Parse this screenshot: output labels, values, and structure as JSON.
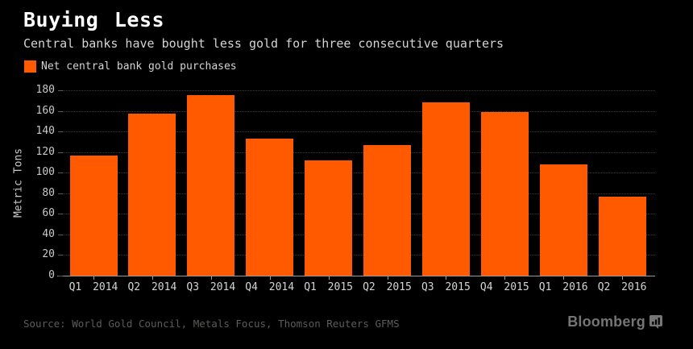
{
  "header": {
    "title": "Buying Less",
    "subtitle": "Central banks have bought less gold for three consecutive quarters"
  },
  "legend": {
    "label": "Net central bank gold purchases",
    "swatch_color": "#ff5a00"
  },
  "chart_data": {
    "type": "bar",
    "title": "Buying Less",
    "subtitle": "Central banks have bought less gold for three consecutive quarters",
    "series_name": "Net central bank gold purchases",
    "categories": [
      "Q1 2014",
      "Q2 2014",
      "Q3 2014",
      "Q4 2014",
      "Q1 2015",
      "Q2 2015",
      "Q3 2015",
      "Q4 2015",
      "Q1 2016",
      "Q2 2016"
    ],
    "values": [
      117,
      157,
      175,
      133,
      112,
      127,
      168,
      159,
      108,
      77
    ],
    "xlabel": "",
    "ylabel": "Metric Tons",
    "ylim": [
      0,
      180
    ],
    "ytick_step": 20,
    "grid": "horizontal-dotted",
    "legend_position": "top-left",
    "bar_color": "#ff5a00",
    "background_color": "#000000"
  },
  "footer": {
    "source": "Source: World Gold Council, Metals Focus, Thomson Reuters GFMS",
    "logo": "Bloomberg"
  },
  "colors": {
    "accent_orange": "#ff5a00",
    "title_text": "#ffffff",
    "body_text": "#d4d4d4",
    "axis_text": "#c9c9c9",
    "gridline": "#3a3a33",
    "axis_line": "#9a9a9a",
    "source_text": "#5c5c58",
    "logo_gray": "#757575"
  }
}
